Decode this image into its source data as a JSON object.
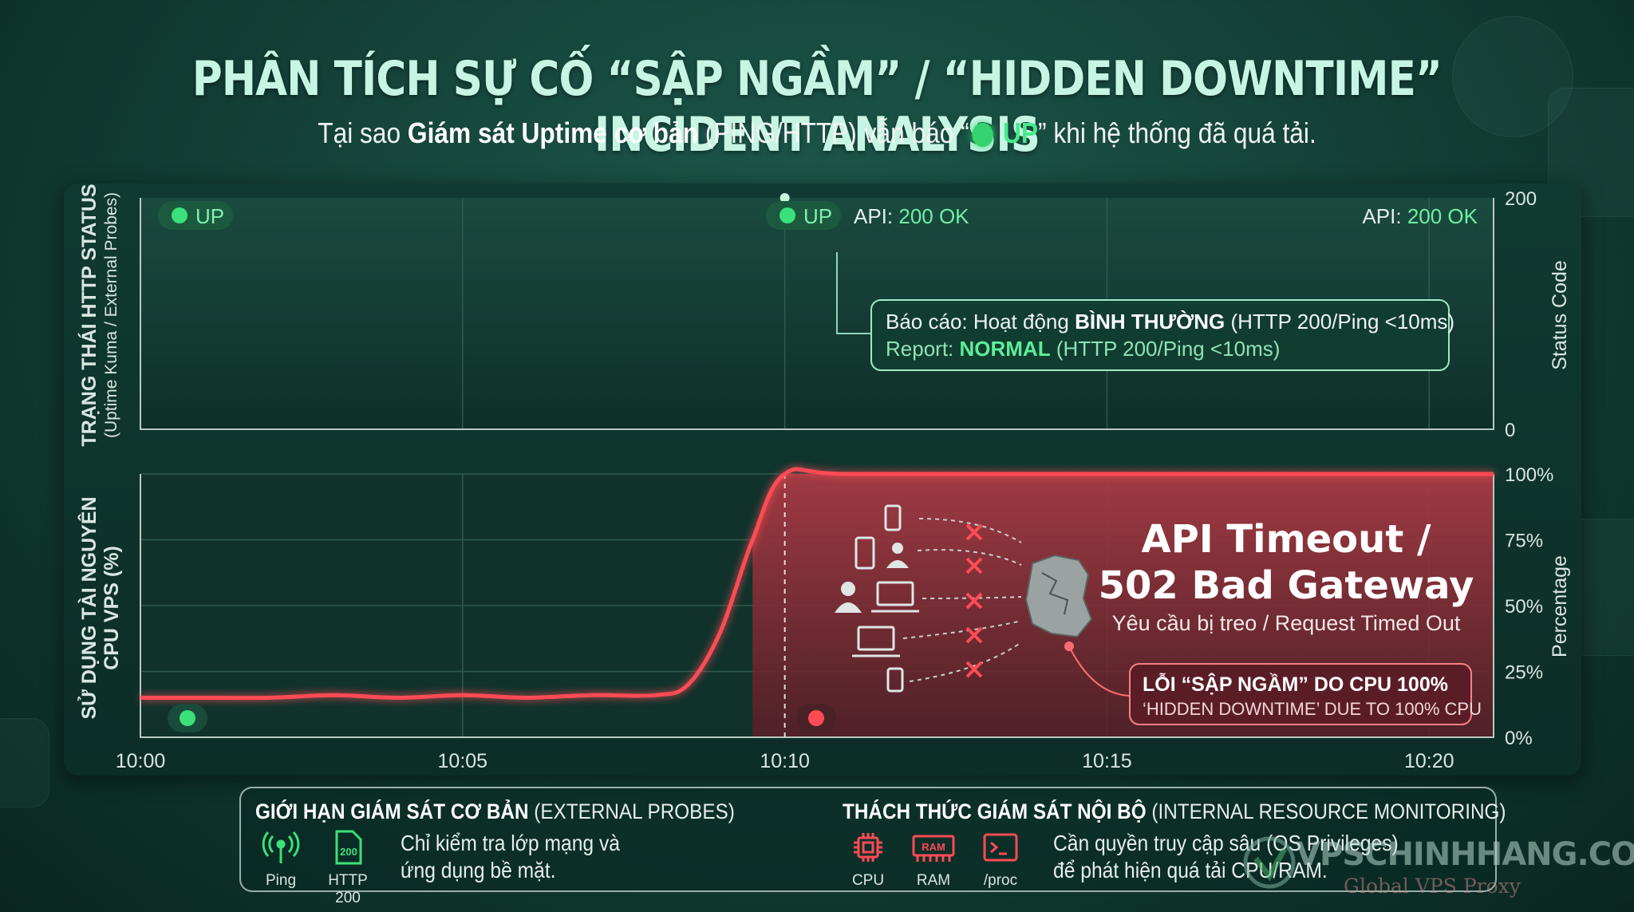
{
  "title": "PHÂN TÍCH SỰ CỐ “SẬP NGẦM” / “HIDDEN DOWNTIME” INCIDENT ANALYSIS",
  "subtitle": {
    "prefix": "Tại sao ",
    "bold": "Giám sát Uptime cơ bản",
    "middle": " (PING/HTTP) vẫn báo “",
    "up": "UP",
    "suffix": "” khi hệ thống đã quá tải."
  },
  "colors": {
    "green": "#3ce07a",
    "red": "#ff4b55",
    "text": "#d9e6e2"
  },
  "status_panel": {
    "ylabel": "TRẠNG THÁI HTTP STATUS",
    "ylabel_sub": "(Uptime Kuma / External Probes)",
    "right_label": "Status Code",
    "badge_left": "UP",
    "badge_mid": "UP",
    "api_mid_prefix": "API: ",
    "api_mid_value": "200 OK",
    "api_right_prefix": "API: ",
    "api_right_value": "200 OK",
    "report_line1_prefix": "Báo cáo: Hoạt động ",
    "report_line1_bold": "BÌNH THƯỜNG",
    "report_line1_suffix": " (HTTP 200/Ping <10ms)",
    "report_line2_prefix": "Report: ",
    "report_line2_bold": "NORMAL",
    "report_line2_suffix": " (HTTP 200/Ping <10ms)"
  },
  "cpu_panel": {
    "ylabel": "SỬ DỤNG TÀI NGUYÊN",
    "ylabel2": "CPU VPS (%)",
    "right_label": "Percentage",
    "timeout_line1": "API Timeout  /",
    "timeout_line2": "502 Bad Gateway",
    "timeout_sub": "Yêu cầu bị treo / Request Timed Out",
    "error_line1": "LỖI “SẬP NGẦM” DO CPU 100%",
    "error_line2": "‘HIDDEN DOWNTIME’ DUE TO 100% CPU"
  },
  "chart_data": [
    {
      "type": "line",
      "x": [
        "10:00",
        "10:05",
        "10:10",
        "10:15",
        "10:20"
      ],
      "xlim": [
        "10:00",
        "10:21"
      ],
      "series": [
        {
          "x": [
            "10:00",
            "10:10",
            "10:21"
          ],
          "y": [
            200,
            200,
            200
          ]
        }
      ],
      "ylim": [
        0,
        200
      ],
      "yticks": [
        0,
        200
      ]
    },
    {
      "type": "line",
      "x": [
        "10:00",
        "10:05",
        "10:10",
        "10:15",
        "10:20"
      ],
      "xlim": [
        "10:00",
        "10:21"
      ],
      "series": [
        {
          "x": [
            "10:00",
            "10:01",
            "10:02",
            "10:03",
            "10:04",
            "10:05",
            "10:06",
            "10:07",
            "10:08",
            "10:08.5",
            "10:09",
            "10:09.5",
            "10:10",
            "10:11",
            "10:15",
            "10:21"
          ],
          "y": [
            15,
            15,
            15,
            16,
            15,
            16,
            15,
            16,
            16,
            20,
            40,
            75,
            100,
            100,
            100,
            100
          ]
        }
      ],
      "ylim": [
        0,
        100
      ],
      "yticks": [
        "0%",
        "25%",
        "50%",
        "75%",
        "100%"
      ]
    }
  ],
  "bottom": {
    "left_head_bold": "GIỚI HẠN GIÁM SÁT CƠ BẢN",
    "left_head_rest": " (EXTERNAL PROBES)",
    "left_icons": [
      "Ping",
      "HTTP 200"
    ],
    "left_desc_1": "Chỉ kiểm tra lớp mạng và",
    "left_desc_2": "ứng dụng bề mặt.",
    "right_head_bold": "THÁCH THỨC GIÁM SÁT NỘI BỘ",
    "right_head_rest": " (INTERNAL RESOURCE MONITORING)",
    "right_icons": [
      "CPU",
      "RAM",
      "/proc"
    ],
    "right_desc_1": "Cần quyền truy cập sâu (OS Privileges)",
    "right_desc_2": "để phát hiện quá tải CPU/RAM."
  },
  "watermark": {
    "text": "VPSCHINHHANG.COM",
    "sub": "Global VPS Proxy"
  }
}
